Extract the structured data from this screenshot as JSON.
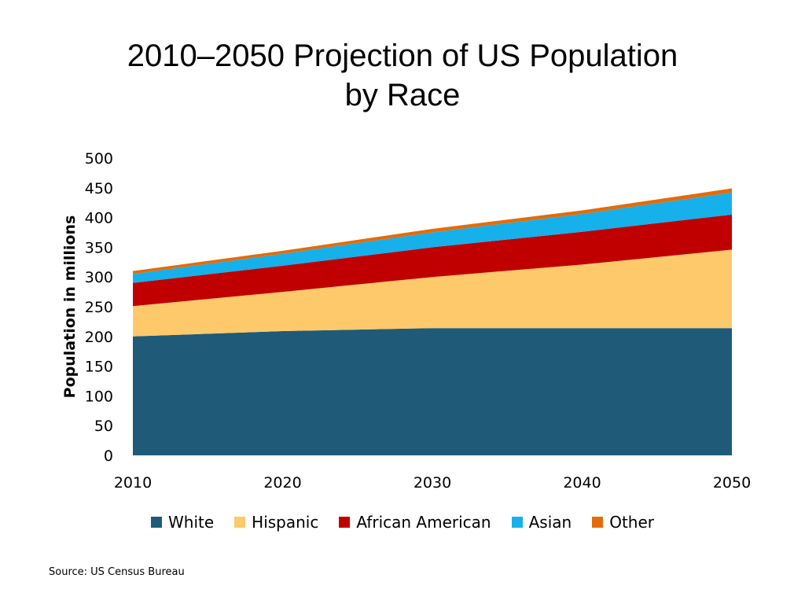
{
  "chart_data": {
    "type": "area",
    "stacked": true,
    "title_line1": "2010–2050 Projection of US Population",
    "title_line2": "by Race",
    "ylabel": "Population in millions",
    "xlabel": "",
    "x": [
      2010,
      2020,
      2030,
      2040,
      2050
    ],
    "x_tick_labels": [
      "2010",
      "2020",
      "2030",
      "2040",
      "2050"
    ],
    "ylim": [
      0,
      500
    ],
    "y_ticks": [
      0,
      50,
      100,
      150,
      200,
      250,
      300,
      350,
      400,
      450,
      500
    ],
    "y_tick_labels": [
      "0",
      "50",
      "100",
      "150",
      "200",
      "250",
      "300",
      "350",
      "400",
      "450",
      "500"
    ],
    "grid": false,
    "legend_position": "bottom",
    "series": [
      {
        "name": "White",
        "color": "#1f5b78",
        "values": [
          200,
          209,
          214,
          214,
          214
        ]
      },
      {
        "name": "Hispanic",
        "color": "#fdc96b",
        "values": [
          51,
          66,
          86,
          107,
          132
        ]
      },
      {
        "name": "African American",
        "color": "#c00000",
        "values": [
          39,
          44,
          50,
          55,
          59
        ]
      },
      {
        "name": "Asian",
        "color": "#16b0eb",
        "values": [
          15,
          20,
          25,
          30,
          37
        ]
      },
      {
        "name": "Other",
        "color": "#e36c0a",
        "values": [
          5,
          5,
          6,
          6,
          7
        ]
      }
    ]
  },
  "source": "Source: US Census Bureau"
}
